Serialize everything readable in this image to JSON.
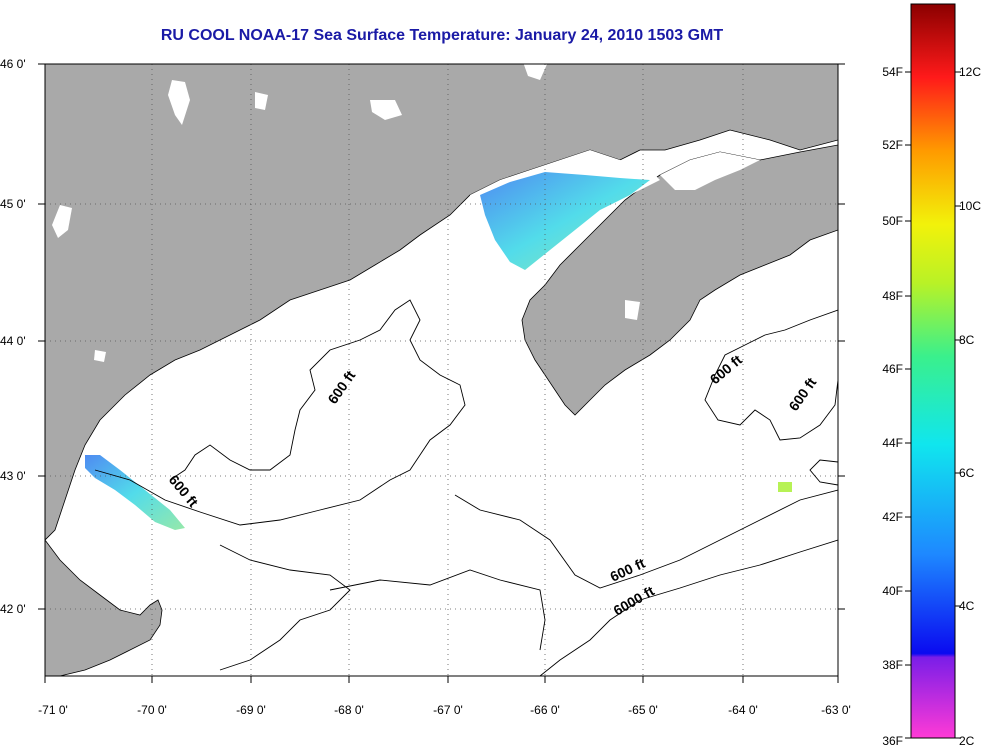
{
  "title": "RU COOL  NOAA-17  Sea Surface Temperature:  January 24, 2010 1503 GMT",
  "map": {
    "lon_ticks": [
      "-71 0'",
      "-70 0'",
      "-69 0'",
      "-68 0'",
      "-67 0'",
      "-66 0'",
      "-65 0'",
      "-64 0'",
      "-63 0'"
    ],
    "lat_ticks": [
      "46 0'",
      "45 0'",
      "44 0'",
      "43 0'",
      "42 0'"
    ],
    "contour_labels": [
      "600 ft",
      "600 ft",
      "600 ft",
      "600 ft",
      "6000 ft",
      "600 ft"
    ],
    "colors": {
      "land": "#a9a9a9",
      "water": "#ffffff",
      "title": "#1a1aa6"
    }
  },
  "colorbar": {
    "fahrenheit_labels": [
      "54F",
      "52F",
      "50F",
      "48F",
      "46F",
      "44F",
      "42F",
      "40F",
      "38F",
      "36F"
    ],
    "celsius_labels": [
      "12C",
      "10C",
      "8C",
      "6C",
      "4C",
      "2C"
    ]
  }
}
